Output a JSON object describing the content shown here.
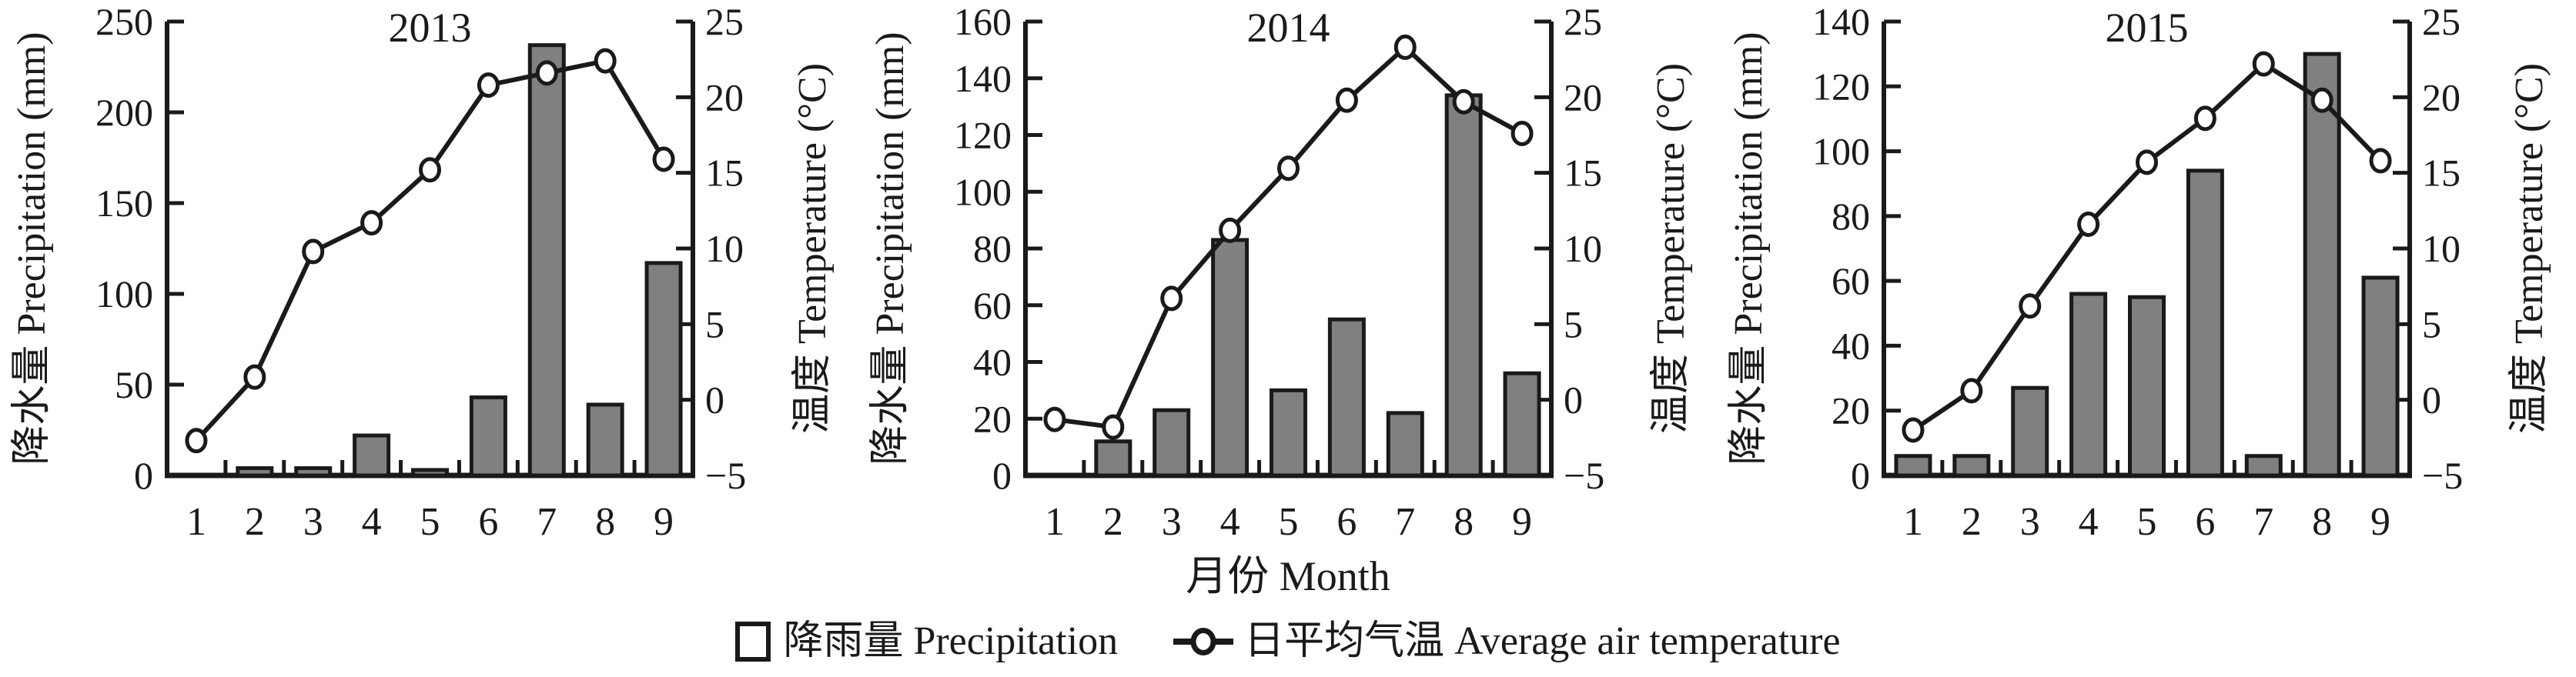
{
  "figure": {
    "x_axis_label": "月份 Month",
    "legend": {
      "bar_label": "降雨量 Precipitation",
      "line_label": "日平均气温 Average air temperature"
    },
    "colors": {
      "bar_fill": "#808080",
      "bar_stroke": "#1a1a1a",
      "line": "#1a1a1a",
      "marker_fill": "#ffffff",
      "text": "#1a1a1a",
      "background": "#ffffff"
    }
  },
  "chart_data": [
    {
      "type": "bar",
      "title": "2013",
      "categories": [
        "1",
        "2",
        "3",
        "4",
        "5",
        "6",
        "7",
        "8",
        "9"
      ],
      "left_axis": {
        "label": "降水量 Precipitation (mm)",
        "min": 0,
        "max": 250,
        "step": 50
      },
      "right_axis": {
        "label": "温度 Temperature (°C)",
        "min": -5,
        "max": 25,
        "step": 5
      },
      "series": [
        {
          "name": "降雨量 Precipitation",
          "type": "bar",
          "axis": "left",
          "values": [
            0,
            4,
            4,
            22,
            3,
            43,
            237,
            39,
            117
          ]
        },
        {
          "name": "日平均气温 Average air temperature",
          "type": "line",
          "axis": "right",
          "values": [
            -2.7,
            1.5,
            9.8,
            11.7,
            15.2,
            20.8,
            21.6,
            22.4,
            15.9
          ]
        }
      ],
      "grid": false,
      "legend_position": "bottom"
    },
    {
      "type": "bar",
      "title": "2014",
      "categories": [
        "1",
        "2",
        "3",
        "4",
        "5",
        "6",
        "7",
        "8",
        "9"
      ],
      "left_axis": {
        "label": "降水量 Precipitation (mm)",
        "min": 0,
        "max": 160,
        "step": 20
      },
      "right_axis": {
        "label": "温度 Temperature (°C)",
        "min": -5,
        "max": 25,
        "step": 5
      },
      "series": [
        {
          "name": "降雨量 Precipitation",
          "type": "bar",
          "axis": "left",
          "values": [
            0,
            12,
            23,
            83,
            30,
            55,
            22,
            134,
            36
          ]
        },
        {
          "name": "日平均气温 Average air temperature",
          "type": "line",
          "axis": "right",
          "values": [
            -1.3,
            -1.8,
            6.7,
            11.2,
            15.3,
            19.8,
            23.3,
            19.7,
            17.6
          ]
        }
      ],
      "grid": false,
      "legend_position": "bottom"
    },
    {
      "type": "bar",
      "title": "2015",
      "categories": [
        "1",
        "2",
        "3",
        "4",
        "5",
        "6",
        "7",
        "8",
        "9"
      ],
      "left_axis": {
        "label": "降水量 Precipitation (mm)",
        "min": 0,
        "max": 140,
        "step": 20
      },
      "right_axis": {
        "label": "温度 Temperature (°C)",
        "min": -5,
        "max": 25,
        "step": 5
      },
      "series": [
        {
          "name": "降雨量 Precipitation",
          "type": "bar",
          "axis": "left",
          "values": [
            6,
            6,
            27,
            56,
            55,
            94,
            6,
            130,
            61
          ]
        },
        {
          "name": "日平均气温 Average air temperature",
          "type": "line",
          "axis": "right",
          "values": [
            -2.0,
            0.6,
            6.2,
            11.6,
            15.7,
            18.6,
            22.2,
            19.8,
            15.8
          ]
        }
      ],
      "grid": false,
      "legend_position": "bottom"
    }
  ]
}
